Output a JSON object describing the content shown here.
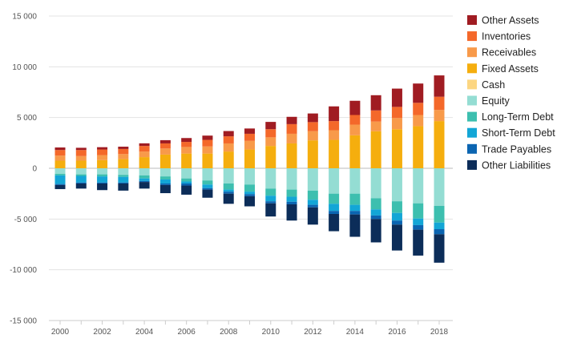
{
  "chart_data": {
    "type": "bar",
    "stacked": true,
    "title": "",
    "xlabel": "",
    "ylabel": "",
    "ylim": [
      -15000,
      15000
    ],
    "yticks": [
      15000,
      10000,
      5000,
      0,
      -5000,
      -10000,
      -15000
    ],
    "ytick_labels": [
      "15 000",
      "10 000",
      "5 000",
      "0",
      "-5 000",
      "-10 000",
      "-15 000"
    ],
    "xtick_labels": [
      "2000",
      "2002",
      "2004",
      "2006",
      "2008",
      "2010",
      "2012",
      "2014",
      "2016",
      "2018"
    ],
    "grid": true,
    "legend_position": "right",
    "categories": [
      "2000",
      "2001",
      "2002",
      "2003",
      "2004",
      "2005",
      "2006",
      "2007",
      "2008",
      "2009",
      "2010",
      "2011",
      "2012",
      "2013",
      "2014",
      "2015",
      "2016",
      "2017",
      "2018"
    ],
    "series": [
      {
        "name": "Other Assets",
        "side": "asset",
        "color": "#a01c22",
        "values": [
          250,
          220,
          230,
          230,
          260,
          320,
          380,
          420,
          520,
          520,
          720,
          720,
          850,
          1450,
          1400,
          1500,
          1800,
          1900,
          2100
        ]
      },
      {
        "name": "Inventories",
        "side": "asset",
        "color": "#f4682a",
        "values": [
          550,
          600,
          550,
          500,
          550,
          500,
          500,
          650,
          700,
          700,
          800,
          950,
          900,
          900,
          950,
          1100,
          1100,
          1200,
          1300
        ]
      },
      {
        "name": "Receivables",
        "side": "asset",
        "color": "#f89a4a",
        "values": [
          500,
          450,
          500,
          500,
          550,
          600,
          650,
          700,
          800,
          850,
          850,
          950,
          900,
          950,
          1050,
          950,
          1100,
          1100,
          1100
        ]
      },
      {
        "name": "Fixed Assets",
        "side": "asset",
        "color": "#f5ae0e",
        "values": [
          750,
          750,
          800,
          900,
          1100,
          1350,
          1450,
          1450,
          1650,
          1850,
          2200,
          2450,
          2750,
          2800,
          3250,
          3650,
          3850,
          4150,
          4650
        ]
      },
      {
        "name": "Cash",
        "side": "asset",
        "color": "#fcd682",
        "values": [
          0,
          0,
          0,
          0,
          0,
          0,
          0,
          0,
          0,
          0,
          0,
          0,
          0,
          0,
          0,
          0,
          0,
          0,
          0
        ]
      },
      {
        "name": "Equity",
        "side": "liability",
        "color": "#94ddd3",
        "values": [
          550,
          600,
          600,
          650,
          700,
          800,
          1000,
          1200,
          1500,
          1600,
          2000,
          2100,
          2200,
          2500,
          2500,
          2950,
          3250,
          3450,
          3700
        ]
      },
      {
        "name": "Long-Term Debt",
        "side": "liability",
        "color": "#3dbfaf",
        "values": [
          150,
          150,
          200,
          200,
          300,
          300,
          300,
          400,
          600,
          700,
          700,
          700,
          900,
          1000,
          1100,
          1100,
          1150,
          1500,
          1650
        ]
      },
      {
        "name": "Short-Term Debt",
        "side": "liability",
        "color": "#13a6d6",
        "values": [
          850,
          650,
          600,
          550,
          250,
          400,
          200,
          350,
          200,
          250,
          550,
          500,
          500,
          700,
          600,
          600,
          750,
          650,
          650
        ]
      },
      {
        "name": "Trade Payables",
        "side": "liability",
        "color": "#0b65b1",
        "values": [
          100,
          100,
          100,
          100,
          100,
          150,
          200,
          150,
          200,
          200,
          200,
          250,
          250,
          300,
          350,
          350,
          400,
          450,
          500
        ]
      },
      {
        "name": "Other Liabilities",
        "side": "liability",
        "color": "#0c2d59",
        "values": [
          400,
          500,
          650,
          700,
          650,
          800,
          900,
          800,
          1000,
          1000,
          1300,
          1600,
          1700,
          1700,
          2200,
          2300,
          2550,
          2550,
          2800
        ]
      }
    ]
  },
  "colors": {
    "grid": "#e3e3e3",
    "axis": "#cccccc",
    "zero": "#bbbbbb"
  }
}
